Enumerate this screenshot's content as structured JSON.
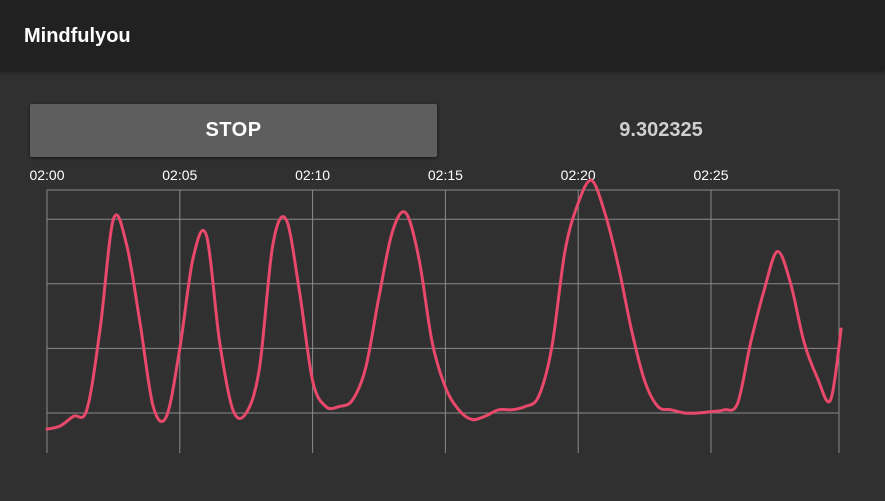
{
  "app_bar": {
    "title": "Mindfulyou"
  },
  "controls": {
    "stop_label": "STOP",
    "value": "9.302325"
  },
  "colors": {
    "background": "#303030",
    "app_bar": "#212121",
    "button": "#5e5e5e",
    "line": "#e8486a",
    "grid": "#8a8a8a"
  },
  "chart_data": {
    "type": "line",
    "title": "",
    "xlabel": "",
    "ylabel": "",
    "x_ticks": [
      "02:00",
      "02:05",
      "02:10",
      "02:15",
      "02:20",
      "02:25"
    ],
    "xlim": [
      0,
      29.9
    ],
    "ylim": [
      0,
      4.1
    ],
    "grid": true,
    "legend": "none",
    "series": [
      {
        "x": [
          0,
          0.5,
          1,
          1.5,
          2,
          2.5,
          3,
          3.5,
          4,
          4.5,
          5,
          5.5,
          6,
          6.5,
          7,
          7.5,
          8,
          8.5,
          9,
          9.5,
          10,
          10.5,
          11,
          11.5,
          12,
          12.5,
          13,
          13.5,
          14,
          14.5,
          15,
          15.5,
          16,
          16.5,
          17,
          17.5,
          18,
          18.5,
          19,
          19.5,
          20,
          20.5,
          21,
          21.5,
          22,
          22.5,
          23,
          23.5,
          24,
          24.5,
          25,
          25.5,
          26,
          26.5,
          27,
          27.5,
          28,
          28.5,
          29,
          29.5,
          29.9
        ],
        "y": [
          0.25,
          0.3,
          0.45,
          0.55,
          1.8,
          3.5,
          3.1,
          1.9,
          0.6,
          0.45,
          1.5,
          2.9,
          3.25,
          1.6,
          0.55,
          0.5,
          1.2,
          3.1,
          3.5,
          2.4,
          1.0,
          0.6,
          0.6,
          0.7,
          1.2,
          2.3,
          3.3,
          3.6,
          2.9,
          1.6,
          0.9,
          0.55,
          0.4,
          0.45,
          0.55,
          0.55,
          0.6,
          0.75,
          1.5,
          3.0,
          3.75,
          4.1,
          3.6,
          2.8,
          1.8,
          1.0,
          0.6,
          0.55,
          0.5,
          0.5,
          0.52,
          0.55,
          0.65,
          1.6,
          2.4,
          3.0,
          2.5,
          1.6,
          1.05,
          0.7,
          1.8
        ]
      }
    ]
  }
}
